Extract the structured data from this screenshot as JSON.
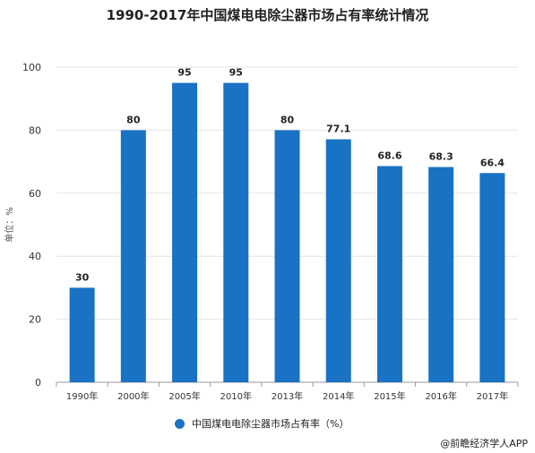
{
  "chart_data": {
    "type": "bar",
    "title": "1990-2017年中国煤电电除尘器市场占有率统计情况",
    "ylabel": "单位：%",
    "xlabel": "",
    "categories": [
      "1990年",
      "2000年",
      "2005年",
      "2010年",
      "2013年",
      "2014年",
      "2015年",
      "2016年",
      "2017年"
    ],
    "series": [
      {
        "name": "中国煤电电除尘器市场占有率（%）",
        "values": [
          30,
          80,
          95,
          95,
          80,
          77.1,
          68.6,
          68.3,
          66.4
        ]
      }
    ],
    "data_labels": [
      "30",
      "80",
      "95",
      "95",
      "80",
      "77.1",
      "68.6",
      "68.3",
      "66.4"
    ],
    "ylim": [
      0,
      100
    ],
    "yticks": [
      "0",
      "20",
      "40",
      "60",
      "80",
      "100"
    ],
    "grid": true,
    "legend": "bottom",
    "color": "#1a72c4"
  },
  "source": "@前瞻经济学人APP"
}
